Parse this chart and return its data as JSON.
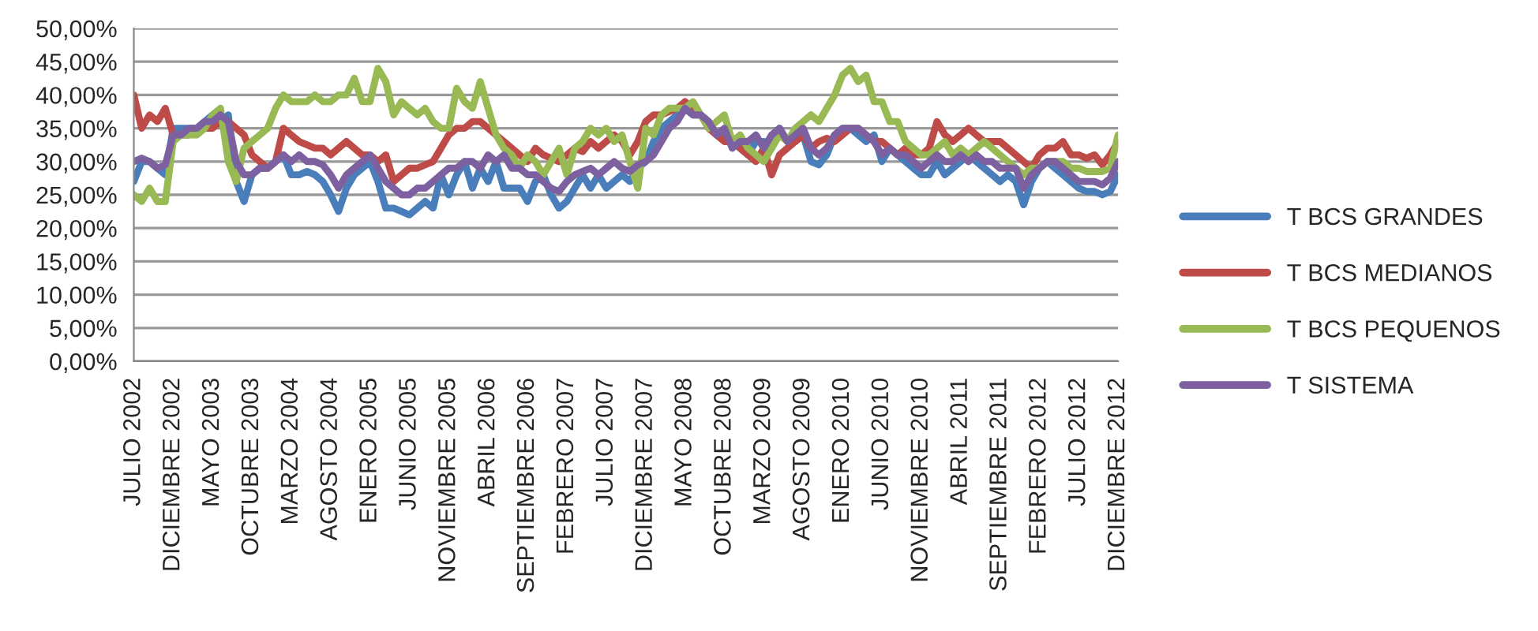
{
  "chart_data": {
    "type": "line",
    "categories": [
      "JULIO 2002",
      null,
      null,
      null,
      null,
      "DICIEMBRE 2002",
      null,
      null,
      null,
      null,
      "MAYO 2003",
      null,
      null,
      null,
      null,
      "OCTUBRE 2003",
      null,
      null,
      null,
      null,
      "MARZO 2004",
      null,
      null,
      null,
      null,
      "AGOSTO 2004",
      null,
      null,
      null,
      null,
      "ENERO 2005",
      null,
      null,
      null,
      null,
      "JUNIO 2005",
      null,
      null,
      null,
      null,
      "NOVIEMBRE 2005",
      null,
      null,
      null,
      null,
      "ABRIL 2006",
      null,
      null,
      null,
      null,
      "SEPTIEMBRE 2006",
      null,
      null,
      null,
      null,
      "FEBRERO 2007",
      null,
      null,
      null,
      null,
      "JULIO 2007",
      null,
      null,
      null,
      null,
      "DICIEMBRE 2007",
      null,
      null,
      null,
      null,
      "MAYO 2008",
      null,
      null,
      null,
      null,
      "OCTUBRE 2008",
      null,
      null,
      null,
      null,
      "MARZO 2009",
      null,
      null,
      null,
      null,
      "AGOSTO 2009",
      null,
      null,
      null,
      null,
      "ENERO 2010",
      null,
      null,
      null,
      null,
      "JUNIO 2010",
      null,
      null,
      null,
      null,
      "NOVIEMBRE 2010",
      null,
      null,
      null,
      null,
      "ABRIL 2011",
      null,
      null,
      null,
      null,
      "SEPTIEMBRE 2011",
      null,
      null,
      null,
      null,
      "FEBRERO 2012",
      null,
      null,
      null,
      null,
      "JULIO 2012",
      null,
      null,
      null,
      null,
      "DICIEMBRE 2012"
    ],
    "series": [
      {
        "name": "T BCS GRANDES",
        "color": "#4a7ebb",
        "values": [
          27,
          30,
          30,
          29,
          28,
          35,
          35,
          35,
          35,
          36,
          37,
          36,
          37,
          27,
          24,
          28,
          29,
          29,
          30,
          31,
          28,
          28,
          28.5,
          28,
          27,
          25,
          22.5,
          26,
          28,
          29,
          30,
          27,
          23,
          23,
          22.5,
          22,
          23,
          24,
          23,
          28,
          25,
          28,
          30,
          26,
          29,
          27,
          30,
          26,
          26,
          26,
          24,
          27,
          28,
          25,
          23,
          24,
          26,
          28,
          26,
          28,
          26,
          27,
          28,
          27,
          29,
          30,
          33,
          35,
          36,
          37,
          38,
          37,
          37,
          36,
          34,
          34,
          33,
          32,
          31,
          33,
          33,
          32,
          35,
          33,
          33,
          34,
          30,
          29.5,
          31,
          34,
          35,
          35,
          34,
          33,
          34,
          30,
          32,
          31,
          30,
          29,
          28,
          28,
          30,
          28,
          29,
          30,
          31,
          30,
          29,
          28,
          27,
          28,
          27,
          23.5,
          27,
          29,
          30,
          29,
          28,
          27,
          26,
          25.5,
          25.5,
          25,
          25.5,
          28
        ]
      },
      {
        "name": "T BCS MEDIANOS",
        "color": "#be4b48",
        "values": [
          40,
          35,
          37,
          36,
          38,
          34,
          34,
          34,
          35,
          35,
          35,
          36,
          36,
          35,
          34,
          31,
          30,
          29,
          30,
          35,
          34,
          33,
          32.5,
          32,
          32,
          31,
          32,
          33,
          32,
          31,
          31,
          30,
          31,
          27,
          28,
          29,
          29,
          29.5,
          30,
          32,
          34,
          35,
          35,
          36,
          36,
          35,
          34,
          33,
          32,
          31,
          30,
          32,
          31,
          30.5,
          30,
          31,
          32,
          31.5,
          33,
          32,
          33,
          34,
          33,
          31,
          33,
          36,
          37,
          37,
          37.5,
          38,
          39,
          38,
          37,
          35,
          34,
          33,
          33,
          32,
          31,
          30,
          32,
          28,
          31,
          32,
          33,
          34,
          32,
          33,
          33.5,
          33,
          34,
          35,
          35,
          34,
          33,
          33,
          32,
          31,
          32,
          31,
          31,
          32,
          36,
          34,
          33,
          34,
          35,
          34,
          33,
          33,
          33,
          32,
          31,
          30,
          29,
          31,
          32,
          32,
          33,
          31,
          31,
          30.5,
          31,
          29.5,
          31,
          33
        ]
      },
      {
        "name": "T BCS PEQUENOS",
        "color": "#98b954",
        "values": [
          25,
          24,
          26,
          24,
          24,
          33,
          34,
          34,
          34,
          35,
          37,
          38,
          30,
          27,
          32,
          33,
          34,
          35,
          38,
          40,
          39,
          39,
          39,
          40,
          39,
          39,
          40,
          40,
          42.5,
          39,
          39,
          44,
          42,
          37,
          39,
          38,
          37,
          38,
          36,
          35,
          35,
          41,
          39,
          38,
          42,
          38,
          34,
          32,
          31,
          29,
          31,
          30,
          28,
          30,
          32,
          28,
          32,
          33,
          35,
          34,
          35,
          33,
          34,
          30,
          26,
          35,
          34,
          37,
          38,
          38,
          38,
          39,
          37,
          35,
          36,
          37,
          33,
          34,
          32,
          31,
          30,
          32,
          34,
          33,
          35,
          36,
          37,
          36,
          38,
          40,
          43,
          44,
          42,
          43,
          39,
          39,
          36,
          36,
          33,
          32,
          31,
          31,
          32,
          33,
          31,
          32,
          31,
          32,
          33,
          32,
          31,
          30,
          29,
          28,
          29,
          29,
          30,
          30,
          30,
          29,
          29,
          28.5,
          28.5,
          28.5,
          29,
          34
        ]
      },
      {
        "name": "T SISTEMA",
        "color": "#7d60a0",
        "values": [
          30,
          30.5,
          30,
          29,
          29.5,
          34,
          34,
          35,
          35,
          36,
          36,
          37,
          36,
          30,
          28,
          28,
          29,
          29,
          30,
          31,
          30,
          31,
          30,
          30,
          29.5,
          28,
          26,
          28,
          29,
          30,
          31,
          29,
          27,
          26,
          25,
          25,
          26,
          26,
          27,
          28,
          29,
          29,
          30,
          30,
          29,
          31,
          30,
          31,
          29,
          29,
          28,
          28,
          27,
          26,
          25.5,
          27,
          28,
          28.5,
          29,
          28,
          29,
          30,
          29,
          28.5,
          29.5,
          30,
          31,
          33,
          35,
          36,
          38,
          37,
          37,
          36,
          34,
          35,
          32,
          33,
          33,
          34,
          32,
          34,
          35,
          33,
          34,
          35,
          32,
          31,
          32,
          34,
          35,
          35,
          35,
          34,
          33,
          31,
          32,
          31,
          31,
          30,
          29,
          30,
          31,
          30,
          30,
          31,
          30,
          31,
          30,
          30,
          29,
          29,
          29,
          26,
          28,
          29,
          30,
          30,
          29,
          28,
          27,
          27,
          27,
          26.5,
          27.5,
          30
        ]
      }
    ],
    "ylim": [
      0,
      50
    ],
    "yticks": [
      {
        "value": 0,
        "label": "0,00%"
      },
      {
        "value": 5,
        "label": "5,00%"
      },
      {
        "value": 10,
        "label": "10,00%"
      },
      {
        "value": 15,
        "label": "15,00%"
      },
      {
        "value": 20,
        "label": "20,00%"
      },
      {
        "value": 25,
        "label": "25,00%"
      },
      {
        "value": 30,
        "label": "30,00%"
      },
      {
        "value": 35,
        "label": "35,00%"
      },
      {
        "value": 40,
        "label": "40,00%"
      },
      {
        "value": 45,
        "label": "45,00%"
      },
      {
        "value": 50,
        "label": "50,00%"
      }
    ],
    "grid": "y",
    "legend": "right",
    "line_style": "solid"
  }
}
